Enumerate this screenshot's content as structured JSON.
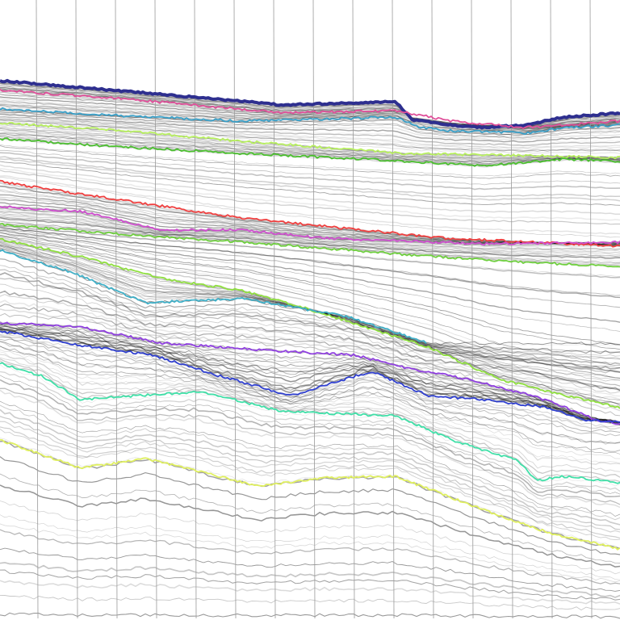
{
  "section": {
    "background": "#ffffff",
    "trace_color": "#000000",
    "grid_color": "#9a9a9a",
    "horizons": [
      {
        "id": "h1",
        "color": "#2e2f8f"
      },
      {
        "id": "h2",
        "color": "#e0509a"
      },
      {
        "id": "h3",
        "color": "#3aa0c8"
      },
      {
        "id": "h4",
        "color": "#b8f060"
      },
      {
        "id": "h5",
        "color": "#4cc030"
      },
      {
        "id": "h6",
        "color": "#f04040"
      },
      {
        "id": "h7",
        "color": "#d050d0"
      },
      {
        "id": "h8",
        "color": "#70d040"
      },
      {
        "id": "h9",
        "color": "#90e040"
      },
      {
        "id": "h10",
        "color": "#40b0c8"
      },
      {
        "id": "h11",
        "color": "#9040e0"
      },
      {
        "id": "h12",
        "color": "#3040d0"
      },
      {
        "id": "h13",
        "color": "#40e0a8"
      },
      {
        "id": "h14",
        "color": "#e0f060"
      }
    ]
  }
}
